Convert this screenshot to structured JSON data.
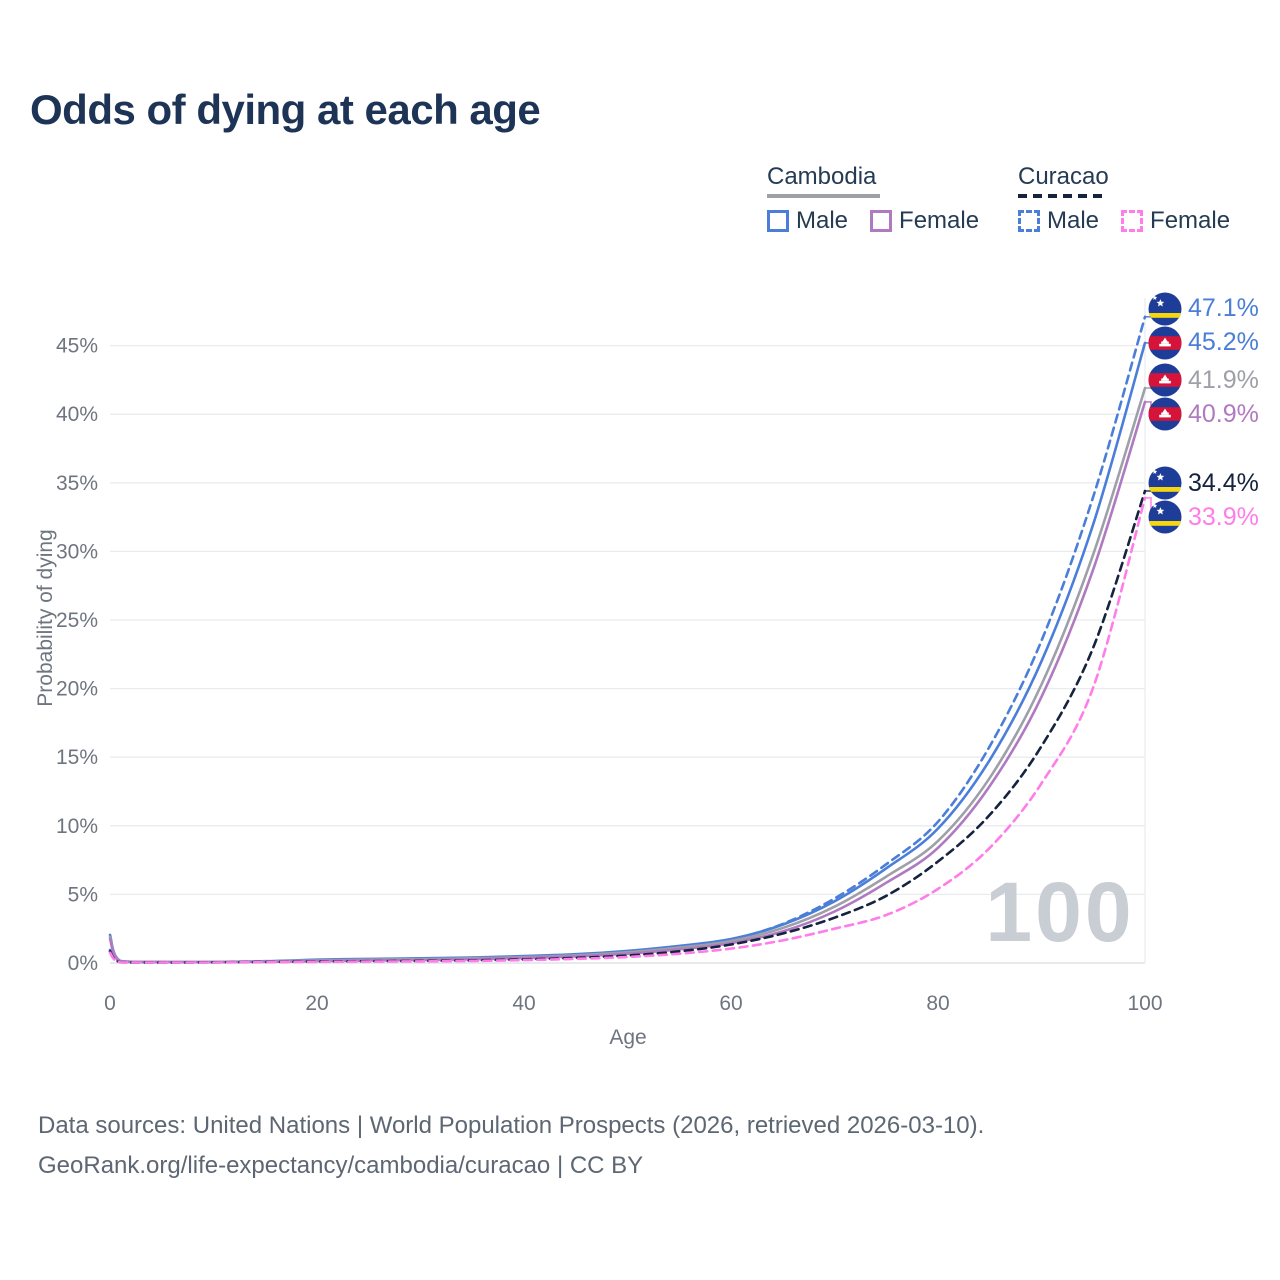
{
  "title": "Odds of dying at each age",
  "legend": {
    "groups": [
      {
        "name": "Cambodia",
        "line_style": "solid",
        "line_color": "#9ea0a8",
        "items": [
          {
            "label": "Male",
            "color": "#4a7ed8",
            "dash": false
          },
          {
            "label": "Female",
            "color": "#b07ac0",
            "dash": false
          }
        ]
      },
      {
        "name": "Curacao",
        "line_style": "dashed",
        "line_color": "#16233e",
        "items": [
          {
            "label": "Male",
            "color": "#4a7ed8",
            "dash": true
          },
          {
            "label": "Female",
            "color": "#ff7de9",
            "dash": true
          }
        ]
      }
    ]
  },
  "chart_data": {
    "type": "line",
    "title": "Odds of dying at each age",
    "xlabel": "Age",
    "ylabel": "Probability of dying",
    "xlim": [
      0,
      100
    ],
    "ylim_pct": [
      0,
      48.5
    ],
    "xticks": [
      0,
      20,
      40,
      60,
      80,
      100
    ],
    "yticks_pct": [
      0,
      5,
      10,
      15,
      20,
      25,
      30,
      35,
      40,
      45
    ],
    "grid": "horizontal",
    "legend_position": "top-right",
    "watermark": "100",
    "x": [
      0,
      1,
      5,
      10,
      15,
      20,
      25,
      30,
      35,
      40,
      45,
      50,
      55,
      60,
      65,
      70,
      75,
      80,
      85,
      90,
      95,
      100
    ],
    "series": [
      {
        "name": "Curacao Male",
        "country": "Curacao",
        "sex": "Male",
        "flag": "curacao",
        "color": "#4a7ed8",
        "dash": true,
        "end_label": "47.1%",
        "values": [
          0.95,
          0.07,
          0.04,
          0.05,
          0.09,
          0.14,
          0.16,
          0.18,
          0.22,
          0.3,
          0.44,
          0.68,
          1.05,
          1.7,
          2.85,
          4.7,
          7.2,
          10.3,
          15.8,
          23.5,
          34.0,
          47.1
        ]
      },
      {
        "name": "Cambodia Male",
        "country": "Cambodia",
        "sex": "Male",
        "flag": "cambodia",
        "color": "#4a7ed8",
        "dash": false,
        "end_label": "45.2%",
        "values": [
          2.05,
          0.15,
          0.08,
          0.08,
          0.13,
          0.24,
          0.3,
          0.34,
          0.4,
          0.5,
          0.64,
          0.88,
          1.25,
          1.75,
          2.8,
          4.5,
          6.9,
          9.8,
          14.8,
          22.0,
          32.0,
          45.2
        ]
      },
      {
        "name": "Cambodia",
        "country": "Cambodia",
        "sex": "Both",
        "flag": "cambodia",
        "color": "#9ea0a8",
        "dash": false,
        "end_label": "41.9%",
        "values": [
          1.9,
          0.14,
          0.07,
          0.07,
          0.11,
          0.19,
          0.24,
          0.28,
          0.34,
          0.43,
          0.56,
          0.78,
          1.12,
          1.6,
          2.55,
          4.1,
          6.3,
          8.9,
          13.5,
          20.3,
          29.8,
          41.9
        ]
      },
      {
        "name": "Cambodia Female",
        "country": "Cambodia",
        "sex": "Female",
        "flag": "cambodia",
        "color": "#b07ac0",
        "dash": false,
        "end_label": "40.9%",
        "values": [
          1.75,
          0.12,
          0.07,
          0.06,
          0.09,
          0.14,
          0.18,
          0.22,
          0.28,
          0.37,
          0.49,
          0.68,
          1.0,
          1.45,
          2.3,
          3.75,
          5.85,
          8.4,
          12.9,
          19.4,
          28.7,
          40.9
        ]
      },
      {
        "name": "Curacao",
        "country": "Curacao",
        "sex": "Both",
        "flag": "curacao",
        "color": "#16233e",
        "dash": true,
        "end_label": "34.4%",
        "values": [
          0.85,
          0.06,
          0.04,
          0.05,
          0.07,
          0.11,
          0.13,
          0.15,
          0.19,
          0.26,
          0.37,
          0.55,
          0.85,
          1.35,
          2.15,
          3.3,
          4.9,
          7.4,
          10.8,
          15.8,
          23.0,
          34.4
        ]
      },
      {
        "name": "Curacao Female",
        "country": "Curacao",
        "sex": "Female",
        "flag": "curacao",
        "color": "#ff7de9",
        "dash": true,
        "end_label": "33.9%",
        "values": [
          0.75,
          0.05,
          0.03,
          0.04,
          0.06,
          0.08,
          0.1,
          0.12,
          0.15,
          0.21,
          0.3,
          0.44,
          0.68,
          1.05,
          1.65,
          2.5,
          3.5,
          5.4,
          8.4,
          13.1,
          20.1,
          33.9
        ]
      }
    ]
  },
  "footer": {
    "line1": "Data sources: United Nations | World Population Prospects (2026, retrieved 2026-03-10).",
    "line2": "GeoRank.org/life-expectancy/cambodia/curacao | CC BY"
  },
  "colors": {
    "title": "#1d3456",
    "legend_text": "#243b53",
    "axis_text": "#6f7580",
    "gridline": "#e9ebee",
    "baseline": "#d9dce1",
    "watermark": "#c9cdd4",
    "footer_text": "#5d6773"
  }
}
